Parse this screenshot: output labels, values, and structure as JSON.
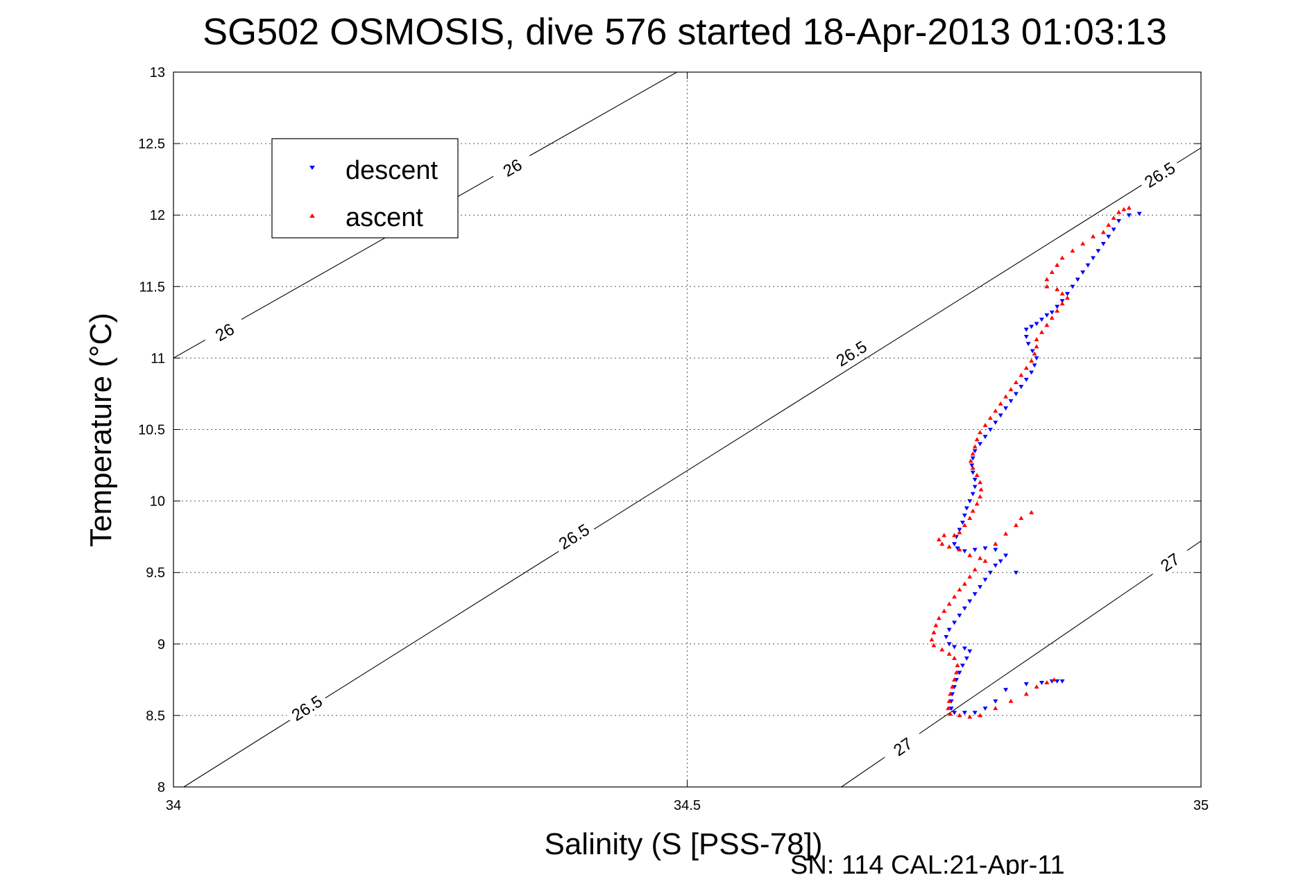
{
  "chart_data": {
    "type": "scatter",
    "title": "SG502 OSMOSIS, dive 576 started 18-Apr-2013 01:03:13",
    "xlabel": "Salinity (S [PSS-78])",
    "ylabel": "Temperature (°C)",
    "footnote": "SN: 114  CAL:21-Apr-11",
    "xlim": [
      34,
      35
    ],
    "ylim": [
      8,
      13
    ],
    "xticks": [
      "34",
      "34.5",
      "35"
    ],
    "yticks": [
      "8",
      "8.5",
      "9",
      "9.5",
      "10",
      "10.5",
      "11",
      "11.5",
      "12",
      "12.5",
      "13"
    ],
    "grid": true,
    "legend_position": "top-left",
    "density_contours": [
      {
        "value": "26",
        "label": "26",
        "line": [
          [
            34,
            11.0
          ],
          [
            34.49,
            13.0
          ]
        ],
        "labels_at": [
          [
            34.05,
            11.18
          ],
          [
            34.33,
            12.33
          ]
        ]
      },
      {
        "value": "26.5",
        "label": "26.5",
        "line": [
          [
            34.01,
            8.0
          ],
          [
            35.0,
            12.47
          ]
        ],
        "labels_at": [
          [
            34.13,
            8.55
          ],
          [
            34.39,
            9.75
          ],
          [
            34.66,
            11.03
          ],
          [
            34.96,
            12.28
          ]
        ]
      },
      {
        "value": "27",
        "label": "27",
        "line": [
          [
            34.65,
            8.0
          ],
          [
            35.0,
            9.72
          ]
        ],
        "labels_at": [
          [
            34.71,
            8.28
          ],
          [
            34.97,
            9.57
          ]
        ]
      }
    ],
    "series": [
      {
        "name": "descent",
        "color": "#0000ff",
        "marker": "triangle-down",
        "points": [
          [
            34.94,
            12.01
          ],
          [
            34.93,
            12.0
          ],
          [
            34.92,
            11.96
          ],
          [
            34.915,
            11.9
          ],
          [
            34.91,
            11.85
          ],
          [
            34.905,
            11.8
          ],
          [
            34.9,
            11.75
          ],
          [
            34.895,
            11.7
          ],
          [
            34.89,
            11.65
          ],
          [
            34.885,
            11.6
          ],
          [
            34.88,
            11.55
          ],
          [
            34.875,
            11.5
          ],
          [
            34.87,
            11.45
          ],
          [
            34.865,
            11.4
          ],
          [
            34.86,
            11.36
          ],
          [
            34.855,
            11.32
          ],
          [
            34.85,
            11.3
          ],
          [
            34.845,
            11.27
          ],
          [
            34.84,
            11.24
          ],
          [
            34.835,
            11.22
          ],
          [
            34.83,
            11.2
          ],
          [
            34.83,
            11.15
          ],
          [
            34.832,
            11.1
          ],
          [
            34.836,
            11.05
          ],
          [
            34.84,
            11.0
          ],
          [
            34.838,
            10.95
          ],
          [
            34.835,
            10.9
          ],
          [
            34.83,
            10.85
          ],
          [
            34.825,
            10.8
          ],
          [
            34.82,
            10.75
          ],
          [
            34.815,
            10.7
          ],
          [
            34.81,
            10.65
          ],
          [
            34.805,
            10.6
          ],
          [
            34.8,
            10.55
          ],
          [
            34.795,
            10.5
          ],
          [
            34.79,
            10.45
          ],
          [
            34.785,
            10.4
          ],
          [
            34.78,
            10.35
          ],
          [
            34.778,
            10.3
          ],
          [
            34.777,
            10.25
          ],
          [
            34.778,
            10.2
          ],
          [
            34.78,
            10.15
          ],
          [
            34.78,
            10.1
          ],
          [
            34.778,
            10.05
          ],
          [
            34.775,
            10.0
          ],
          [
            34.772,
            9.95
          ],
          [
            34.77,
            9.9
          ],
          [
            34.768,
            9.85
          ],
          [
            34.765,
            9.8
          ],
          [
            34.762,
            9.75
          ],
          [
            34.76,
            9.7
          ],
          [
            34.763,
            9.67
          ],
          [
            34.77,
            9.65
          ],
          [
            34.78,
            9.66
          ],
          [
            34.79,
            9.67
          ],
          [
            34.8,
            9.66
          ],
          [
            34.81,
            9.62
          ],
          [
            34.805,
            9.58
          ],
          [
            34.8,
            9.55
          ],
          [
            34.795,
            9.5
          ],
          [
            34.79,
            9.45
          ],
          [
            34.785,
            9.4
          ],
          [
            34.78,
            9.35
          ],
          [
            34.775,
            9.3
          ],
          [
            34.77,
            9.25
          ],
          [
            34.765,
            9.2
          ],
          [
            34.76,
            9.15
          ],
          [
            34.755,
            9.1
          ],
          [
            34.752,
            9.05
          ],
          [
            34.755,
            9.0
          ],
          [
            34.76,
            8.98
          ],
          [
            34.77,
            8.97
          ],
          [
            34.775,
            8.95
          ],
          [
            34.772,
            8.9
          ],
          [
            34.768,
            8.85
          ],
          [
            34.765,
            8.8
          ],
          [
            34.762,
            8.75
          ],
          [
            34.76,
            8.7
          ],
          [
            34.758,
            8.65
          ],
          [
            34.757,
            8.6
          ],
          [
            34.757,
            8.55
          ],
          [
            34.76,
            8.52
          ],
          [
            34.77,
            8.52
          ],
          [
            34.78,
            8.52
          ],
          [
            34.79,
            8.55
          ],
          [
            34.8,
            8.6
          ],
          [
            34.81,
            8.68
          ],
          [
            34.83,
            8.72
          ],
          [
            34.845,
            8.73
          ],
          [
            34.855,
            8.74
          ],
          [
            34.86,
            8.74
          ],
          [
            34.865,
            8.74
          ],
          [
            34.82,
            9.5
          ]
        ]
      },
      {
        "name": "ascent",
        "color": "#ff0000",
        "marker": "triangle-up",
        "points": [
          [
            34.93,
            12.05
          ],
          [
            34.925,
            12.04
          ],
          [
            34.92,
            12.02
          ],
          [
            34.915,
            11.98
          ],
          [
            34.91,
            11.93
          ],
          [
            34.905,
            11.88
          ],
          [
            34.895,
            11.85
          ],
          [
            34.885,
            11.8
          ],
          [
            34.875,
            11.75
          ],
          [
            34.865,
            11.7
          ],
          [
            34.86,
            11.65
          ],
          [
            34.855,
            11.6
          ],
          [
            34.85,
            11.55
          ],
          [
            34.85,
            11.5
          ],
          [
            34.86,
            11.48
          ],
          [
            34.865,
            11.45
          ],
          [
            34.87,
            11.42
          ],
          [
            34.865,
            11.38
          ],
          [
            34.86,
            11.33
          ],
          [
            34.855,
            11.28
          ],
          [
            34.85,
            11.23
          ],
          [
            34.845,
            11.18
          ],
          [
            34.84,
            11.13
          ],
          [
            34.84,
            11.08
          ],
          [
            34.838,
            11.03
          ],
          [
            34.835,
            10.98
          ],
          [
            34.83,
            10.93
          ],
          [
            34.825,
            10.88
          ],
          [
            34.82,
            10.83
          ],
          [
            34.815,
            10.78
          ],
          [
            34.81,
            10.73
          ],
          [
            34.805,
            10.68
          ],
          [
            34.8,
            10.63
          ],
          [
            34.795,
            10.58
          ],
          [
            34.79,
            10.53
          ],
          [
            34.785,
            10.48
          ],
          [
            34.782,
            10.43
          ],
          [
            34.78,
            10.38
          ],
          [
            34.778,
            10.33
          ],
          [
            34.776,
            10.28
          ],
          [
            34.778,
            10.23
          ],
          [
            34.782,
            10.18
          ],
          [
            34.785,
            10.13
          ],
          [
            34.786,
            10.08
          ],
          [
            34.785,
            10.03
          ],
          [
            34.782,
            9.98
          ],
          [
            34.778,
            9.93
          ],
          [
            34.775,
            9.88
          ],
          [
            34.77,
            9.83
          ],
          [
            34.765,
            9.78
          ],
          [
            34.76,
            9.76
          ],
          [
            34.75,
            9.76
          ],
          [
            34.745,
            9.73
          ],
          [
            34.748,
            9.7
          ],
          [
            34.755,
            9.68
          ],
          [
            34.765,
            9.66
          ],
          [
            34.775,
            9.62
          ],
          [
            34.785,
            9.6
          ],
          [
            34.8,
            9.7
          ],
          [
            34.81,
            9.77
          ],
          [
            34.82,
            9.83
          ],
          [
            34.825,
            9.88
          ],
          [
            34.835,
            9.92
          ],
          [
            34.79,
            9.58
          ],
          [
            34.78,
            9.52
          ],
          [
            34.775,
            9.47
          ],
          [
            34.77,
            9.42
          ],
          [
            34.765,
            9.38
          ],
          [
            34.76,
            9.33
          ],
          [
            34.755,
            9.28
          ],
          [
            34.75,
            9.23
          ],
          [
            34.745,
            9.18
          ],
          [
            34.742,
            9.13
          ],
          [
            34.74,
            9.08
          ],
          [
            34.738,
            9.03
          ],
          [
            34.74,
            8.99
          ],
          [
            34.748,
            8.96
          ],
          [
            34.755,
            8.93
          ],
          [
            34.76,
            8.9
          ],
          [
            34.763,
            8.85
          ],
          [
            34.762,
            8.8
          ],
          [
            34.76,
            8.75
          ],
          [
            34.758,
            8.7
          ],
          [
            34.756,
            8.65
          ],
          [
            34.755,
            8.6
          ],
          [
            34.754,
            8.55
          ],
          [
            34.756,
            8.51
          ],
          [
            34.765,
            8.5
          ],
          [
            34.775,
            8.49
          ],
          [
            34.785,
            8.5
          ],
          [
            34.8,
            8.55
          ],
          [
            34.815,
            8.6
          ],
          [
            34.83,
            8.65
          ],
          [
            34.84,
            8.7
          ],
          [
            34.85,
            8.73
          ],
          [
            34.857,
            8.75
          ]
        ]
      }
    ]
  }
}
